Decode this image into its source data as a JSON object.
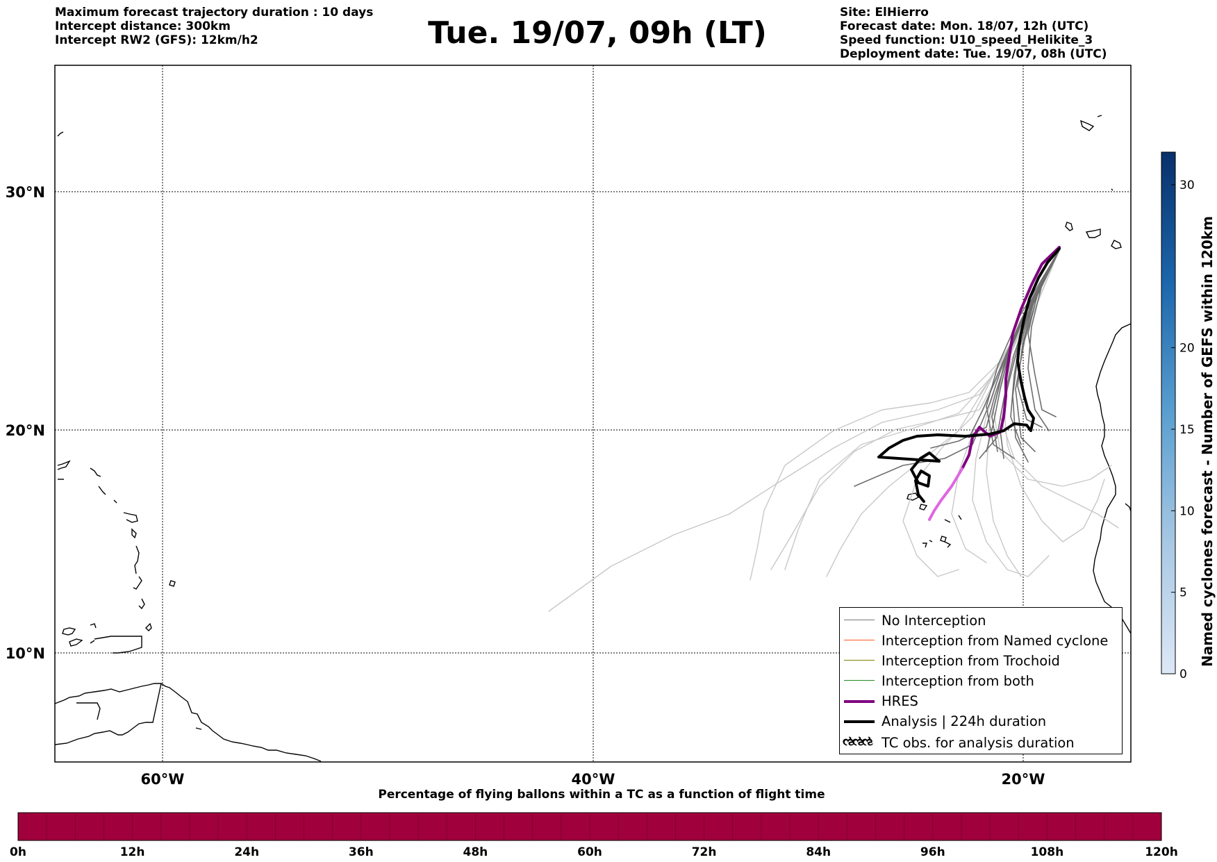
{
  "header": {
    "left": [
      "Maximum forecast trajectory duration : 10 days",
      "Intercept distance: 300km",
      "Intercept RW2 (GFS):  12km/h2"
    ],
    "title": "Tue. 19/07, 09h (LT)",
    "right": [
      "Site: ElHierro",
      "Forecast date: Mon. 18/07, 12h (UTC)",
      "Speed function: U10_speed_Helikite_3",
      "Deployment date: Tue. 19/07, 08h (UTC)"
    ]
  },
  "map": {
    "lat_labels": [
      "30°N",
      "20°N",
      "10°N"
    ],
    "lon_labels": [
      "60°W",
      "40°W",
      "20°W"
    ],
    "grid": true
  },
  "legend": {
    "items": [
      {
        "label": "No Interception",
        "color": "#777777",
        "width": 1.5
      },
      {
        "label": "Interception from Named cyclone",
        "color": "#ff5722",
        "width": 1.5
      },
      {
        "label": "Interception from Trochoid",
        "color": "#808000",
        "width": 1.5
      },
      {
        "label": "Interception from both",
        "color": "#228b22",
        "width": 1.5
      },
      {
        "label": "HRES",
        "color": "#800080",
        "width": 4
      },
      {
        "label": "Analysis | 224h duration",
        "color": "#000000",
        "width": 4
      }
    ],
    "tc_label": "TC obs. for analysis duration",
    "tc_symbol": "ઌઌઌ"
  },
  "colorbar_right": {
    "label": "Named cyclones forecast - Number of GEFS within 120km",
    "ticks": [
      "0",
      "5",
      "10",
      "15",
      "20",
      "30"
    ],
    "tick_values": [
      0,
      5,
      10,
      15,
      20,
      30
    ],
    "max": 32
  },
  "colorbar_bottom": {
    "title": "Percentage of flying ballons within a TC as a function of flight time",
    "ticks": [
      "0h",
      "12h",
      "24h",
      "36h",
      "48h",
      "60h",
      "72h",
      "84h",
      "96h",
      "108h",
      "120h"
    ],
    "fill_color": "#a0003c"
  },
  "colors": {
    "ensemble_far": "#c8c8c8",
    "ensemble_near": "#6e6e6e",
    "hres": "#800080",
    "hres_early": "#e066e0",
    "analysis": "#000000"
  }
}
